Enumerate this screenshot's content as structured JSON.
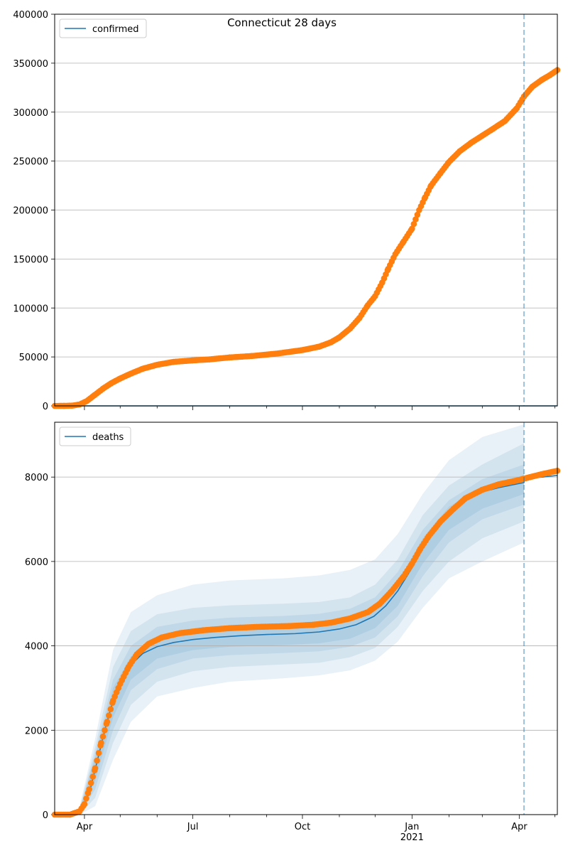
{
  "chart_data": [
    {
      "type": "scatter",
      "title": "Connecticut 28 days",
      "legend": {
        "labels": [
          "confirmed"
        ],
        "placement": "top-left"
      },
      "grid": {
        "x": false,
        "y": true
      },
      "ylim": [
        0,
        400000
      ],
      "xlim": [
        "2020-03-07",
        "2021-05-03"
      ],
      "yticks": [
        0,
        50000,
        100000,
        150000,
        200000,
        250000,
        300000,
        350000,
        400000
      ],
      "ytick_labels": [
        "0",
        "50000",
        "100000",
        "150000",
        "200000",
        "250000",
        "300000",
        "350000",
        "400000"
      ],
      "forecast_start": "2021-04-05",
      "series": [
        {
          "name": "confirmed",
          "kind": "line",
          "color": "#1f77b4",
          "points": [
            [
              "2020-03-07",
              0
            ],
            [
              "2021-05-03",
              0
            ]
          ]
        },
        {
          "kind": "markers",
          "color": "#ff7f0e",
          "points": [
            [
              "2020-03-07",
              0
            ],
            [
              "2020-03-15",
              20
            ],
            [
              "2020-03-22",
              300
            ],
            [
              "2020-03-28",
              1500
            ],
            [
              "2020-04-03",
              5000
            ],
            [
              "2020-04-10",
              11500
            ],
            [
              "2020-04-17",
              18000
            ],
            [
              "2020-04-24",
              23500
            ],
            [
              "2020-05-01",
              28000
            ],
            [
              "2020-05-10",
              33000
            ],
            [
              "2020-05-20",
              38000
            ],
            [
              "2020-06-01",
              42000
            ],
            [
              "2020-06-15",
              45000
            ],
            [
              "2020-07-01",
              46500
            ],
            [
              "2020-07-15",
              47500
            ],
            [
              "2020-08-01",
              49500
            ],
            [
              "2020-08-20",
              51000
            ],
            [
              "2020-09-10",
              53500
            ],
            [
              "2020-10-01",
              57000
            ],
            [
              "2020-10-15",
              60500
            ],
            [
              "2020-10-25",
              65000
            ],
            [
              "2020-11-01",
              70000
            ],
            [
              "2020-11-10",
              79000
            ],
            [
              "2020-11-18",
              90000
            ],
            [
              "2020-11-25",
              103000
            ],
            [
              "2020-12-01",
              112000
            ],
            [
              "2020-12-07",
              126000
            ],
            [
              "2020-12-12",
              140000
            ],
            [
              "2020-12-18",
              155000
            ],
            [
              "2020-12-25",
              168000
            ],
            [
              "2021-01-01",
              181000
            ],
            [
              "2021-01-07",
              200000
            ],
            [
              "2021-01-12",
              213000
            ],
            [
              "2021-01-17",
              225000
            ],
            [
              "2021-01-25",
              238000
            ],
            [
              "2021-02-01",
              249000
            ],
            [
              "2021-02-10",
              260000
            ],
            [
              "2021-02-20",
              269000
            ],
            [
              "2021-03-01",
              276000
            ],
            [
              "2021-03-10",
              283000
            ],
            [
              "2021-03-20",
              291000
            ],
            [
              "2021-03-30",
              304000
            ],
            [
              "2021-04-05",
              316000
            ],
            [
              "2021-04-12",
              326000
            ],
            [
              "2021-04-20",
              333000
            ],
            [
              "2021-04-27",
              338000
            ],
            [
              "2021-05-03",
              343000
            ]
          ]
        }
      ]
    },
    {
      "type": "line",
      "legend": {
        "labels": [
          "deaths"
        ],
        "placement": "top-left"
      },
      "grid": {
        "x": false,
        "y": true
      },
      "ylim": [
        0,
        9300
      ],
      "xlim": [
        "2020-03-07",
        "2021-05-03"
      ],
      "yticks": [
        0,
        2000,
        4000,
        6000,
        8000
      ],
      "ytick_labels": [
        "0",
        "2000",
        "4000",
        "6000",
        "8000"
      ],
      "xtick_labels": [
        "Apr",
        "Jul",
        "Oct",
        "Jan\n2021",
        "Apr"
      ],
      "forecast_start": "2021-04-05",
      "series": [
        {
          "name": "deaths",
          "kind": "line",
          "color": "#1f77b4",
          "points": [
            [
              "2020-03-07",
              0
            ],
            [
              "2020-03-20",
              0
            ],
            [
              "2020-03-28",
              80
            ],
            [
              "2020-04-05",
              500
            ],
            [
              "2020-04-12",
              1300
            ],
            [
              "2020-04-19",
              2100
            ],
            [
              "2020-04-26",
              2800
            ],
            [
              "2020-05-03",
              3250
            ],
            [
              "2020-05-10",
              3550
            ],
            [
              "2020-05-20",
              3820
            ],
            [
              "2020-06-01",
              3980
            ],
            [
              "2020-06-15",
              4080
            ],
            [
              "2020-07-01",
              4150
            ],
            [
              "2020-07-20",
              4200
            ],
            [
              "2020-08-10",
              4240
            ],
            [
              "2020-09-01",
              4270
            ],
            [
              "2020-09-25",
              4290
            ],
            [
              "2020-10-15",
              4330
            ],
            [
              "2020-11-01",
              4400
            ],
            [
              "2020-11-15",
              4500
            ],
            [
              "2020-11-30",
              4700
            ],
            [
              "2020-12-10",
              4950
            ],
            [
              "2020-12-20",
              5300
            ],
            [
              "2021-01-01",
              5850
            ],
            [
              "2021-01-10",
              6300
            ],
            [
              "2021-01-20",
              6750
            ],
            [
              "2021-02-01",
              7150
            ],
            [
              "2021-02-15",
              7500
            ],
            [
              "2021-03-01",
              7650
            ],
            [
              "2021-03-15",
              7750
            ],
            [
              "2021-04-05",
              7870
            ],
            [
              "2021-04-05",
              7950
            ],
            [
              "2021-04-20",
              8000
            ],
            [
              "2021-05-03",
              8040
            ]
          ]
        },
        {
          "kind": "markers",
          "color": "#ff7f0e",
          "points": [
            [
              "2020-03-07",
              0
            ],
            [
              "2020-03-20",
              0
            ],
            [
              "2020-03-28",
              80
            ],
            [
              "2020-04-01",
              250
            ],
            [
              "2020-04-05",
              600
            ],
            [
              "2020-04-10",
              1100
            ],
            [
              "2020-04-15",
              1700
            ],
            [
              "2020-04-20",
              2200
            ],
            [
              "2020-04-25",
              2700
            ],
            [
              "2020-05-01",
              3100
            ],
            [
              "2020-05-08",
              3500
            ],
            [
              "2020-05-15",
              3800
            ],
            [
              "2020-05-25",
              4050
            ],
            [
              "2020-06-05",
              4200
            ],
            [
              "2020-06-20",
              4300
            ],
            [
              "2020-07-10",
              4370
            ],
            [
              "2020-08-01",
              4420
            ],
            [
              "2020-08-25",
              4450
            ],
            [
              "2020-09-20",
              4470
            ],
            [
              "2020-10-10",
              4500
            ],
            [
              "2020-10-25",
              4550
            ],
            [
              "2020-11-10",
              4650
            ],
            [
              "2020-11-25",
              4800
            ],
            [
              "2020-12-05",
              5000
            ],
            [
              "2020-12-15",
              5300
            ],
            [
              "2020-12-25",
              5650
            ],
            [
              "2021-01-01",
              5950
            ],
            [
              "2021-01-08",
              6300
            ],
            [
              "2021-01-15",
              6600
            ],
            [
              "2021-01-25",
              6950
            ],
            [
              "2021-02-05",
              7250
            ],
            [
              "2021-02-15",
              7500
            ],
            [
              "2021-03-01",
              7700
            ],
            [
              "2021-03-15",
              7830
            ],
            [
              "2021-03-30",
              7920
            ],
            [
              "2021-04-10",
              8000
            ],
            [
              "2021-04-20",
              8070
            ],
            [
              "2021-05-03",
              8150
            ]
          ]
        }
      ],
      "bands": [
        {
          "level": 1,
          "color": "#1f77b4",
          "opacity": 0.1,
          "points": [
            [
              "2020-03-28",
              0,
              200
            ],
            [
              "2020-04-10",
              200,
              1800
            ],
            [
              "2020-04-25",
              1300,
              3900
            ],
            [
              "2020-05-10",
              2200,
              4800
            ],
            [
              "2020-06-01",
              2800,
              5200
            ],
            [
              "2020-07-01",
              3000,
              5450
            ],
            [
              "2020-08-01",
              3150,
              5550
            ],
            [
              "2020-09-15",
              3230,
              5600
            ],
            [
              "2020-10-15",
              3300,
              5670
            ],
            [
              "2020-11-10",
              3420,
              5800
            ],
            [
              "2020-12-01",
              3650,
              6050
            ],
            [
              "2020-12-20",
              4100,
              6650
            ],
            [
              "2021-01-10",
              4900,
              7600
            ],
            [
              "2021-02-01",
              5600,
              8400
            ],
            [
              "2021-03-01",
              6000,
              8950
            ],
            [
              "2021-04-05",
              6450,
              9250
            ]
          ]
        },
        {
          "level": 2,
          "color": "#1f77b4",
          "opacity": 0.1,
          "points": [
            [
              "2020-03-28",
              0,
              150
            ],
            [
              "2020-04-10",
              400,
              1600
            ],
            [
              "2020-04-25",
              1700,
              3500
            ],
            [
              "2020-05-10",
              2600,
              4350
            ],
            [
              "2020-06-01",
              3150,
              4750
            ],
            [
              "2020-07-01",
              3400,
              4900
            ],
            [
              "2020-08-01",
              3500,
              4960
            ],
            [
              "2020-09-15",
              3560,
              5000
            ],
            [
              "2020-10-15",
              3600,
              5040
            ],
            [
              "2020-11-10",
              3730,
              5150
            ],
            [
              "2020-12-01",
              3950,
              5450
            ],
            [
              "2020-12-20",
              4450,
              6050
            ],
            [
              "2021-01-10",
              5300,
              7100
            ],
            [
              "2021-02-01",
              6000,
              7800
            ],
            [
              "2021-03-01",
              6550,
              8300
            ],
            [
              "2021-04-05",
              6950,
              8800
            ]
          ]
        },
        {
          "level": 3,
          "color": "#1f77b4",
          "opacity": 0.1,
          "points": [
            [
              "2020-03-28",
              0,
              120
            ],
            [
              "2020-04-10",
              600,
              1450
            ],
            [
              "2020-04-25",
              2000,
              3200
            ],
            [
              "2020-05-10",
              2950,
              4000
            ],
            [
              "2020-06-01",
              3450,
              4450
            ],
            [
              "2020-07-01",
              3700,
              4600
            ],
            [
              "2020-08-01",
              3780,
              4670
            ],
            [
              "2020-09-15",
              3830,
              4710
            ],
            [
              "2020-10-15",
              3870,
              4760
            ],
            [
              "2020-11-10",
              3980,
              4880
            ],
            [
              "2020-12-01",
              4200,
              5150
            ],
            [
              "2020-12-20",
              4700,
              5750
            ],
            [
              "2021-01-10",
              5650,
              6750
            ],
            [
              "2021-02-01",
              6450,
              7450
            ],
            [
              "2021-03-01",
              7000,
              7950
            ],
            [
              "2021-04-05",
              7350,
              8300
            ]
          ]
        },
        {
          "level": 4,
          "color": "#1f77b4",
          "opacity": 0.1,
          "points": [
            [
              "2020-03-28",
              0,
              100
            ],
            [
              "2020-04-10",
              800,
              1350
            ],
            [
              "2020-04-25",
              2300,
              3000
            ],
            [
              "2020-05-10",
              3200,
              3750
            ],
            [
              "2020-06-01",
              3700,
              4200
            ],
            [
              "2020-07-01",
              3900,
              4380
            ],
            [
              "2020-08-01",
              3980,
              4450
            ],
            [
              "2020-09-15",
              4020,
              4490
            ],
            [
              "2020-10-15",
              4060,
              4550
            ],
            [
              "2020-11-10",
              4170,
              4650
            ],
            [
              "2020-12-01",
              4420,
              4920
            ],
            [
              "2020-12-20",
              4950,
              5500
            ],
            [
              "2021-01-10",
              5950,
              6550
            ],
            [
              "2021-02-01",
              6750,
              7300
            ],
            [
              "2021-03-01",
              7250,
              7750
            ],
            [
              "2021-04-05",
              7600,
              8050
            ]
          ]
        }
      ]
    }
  ]
}
